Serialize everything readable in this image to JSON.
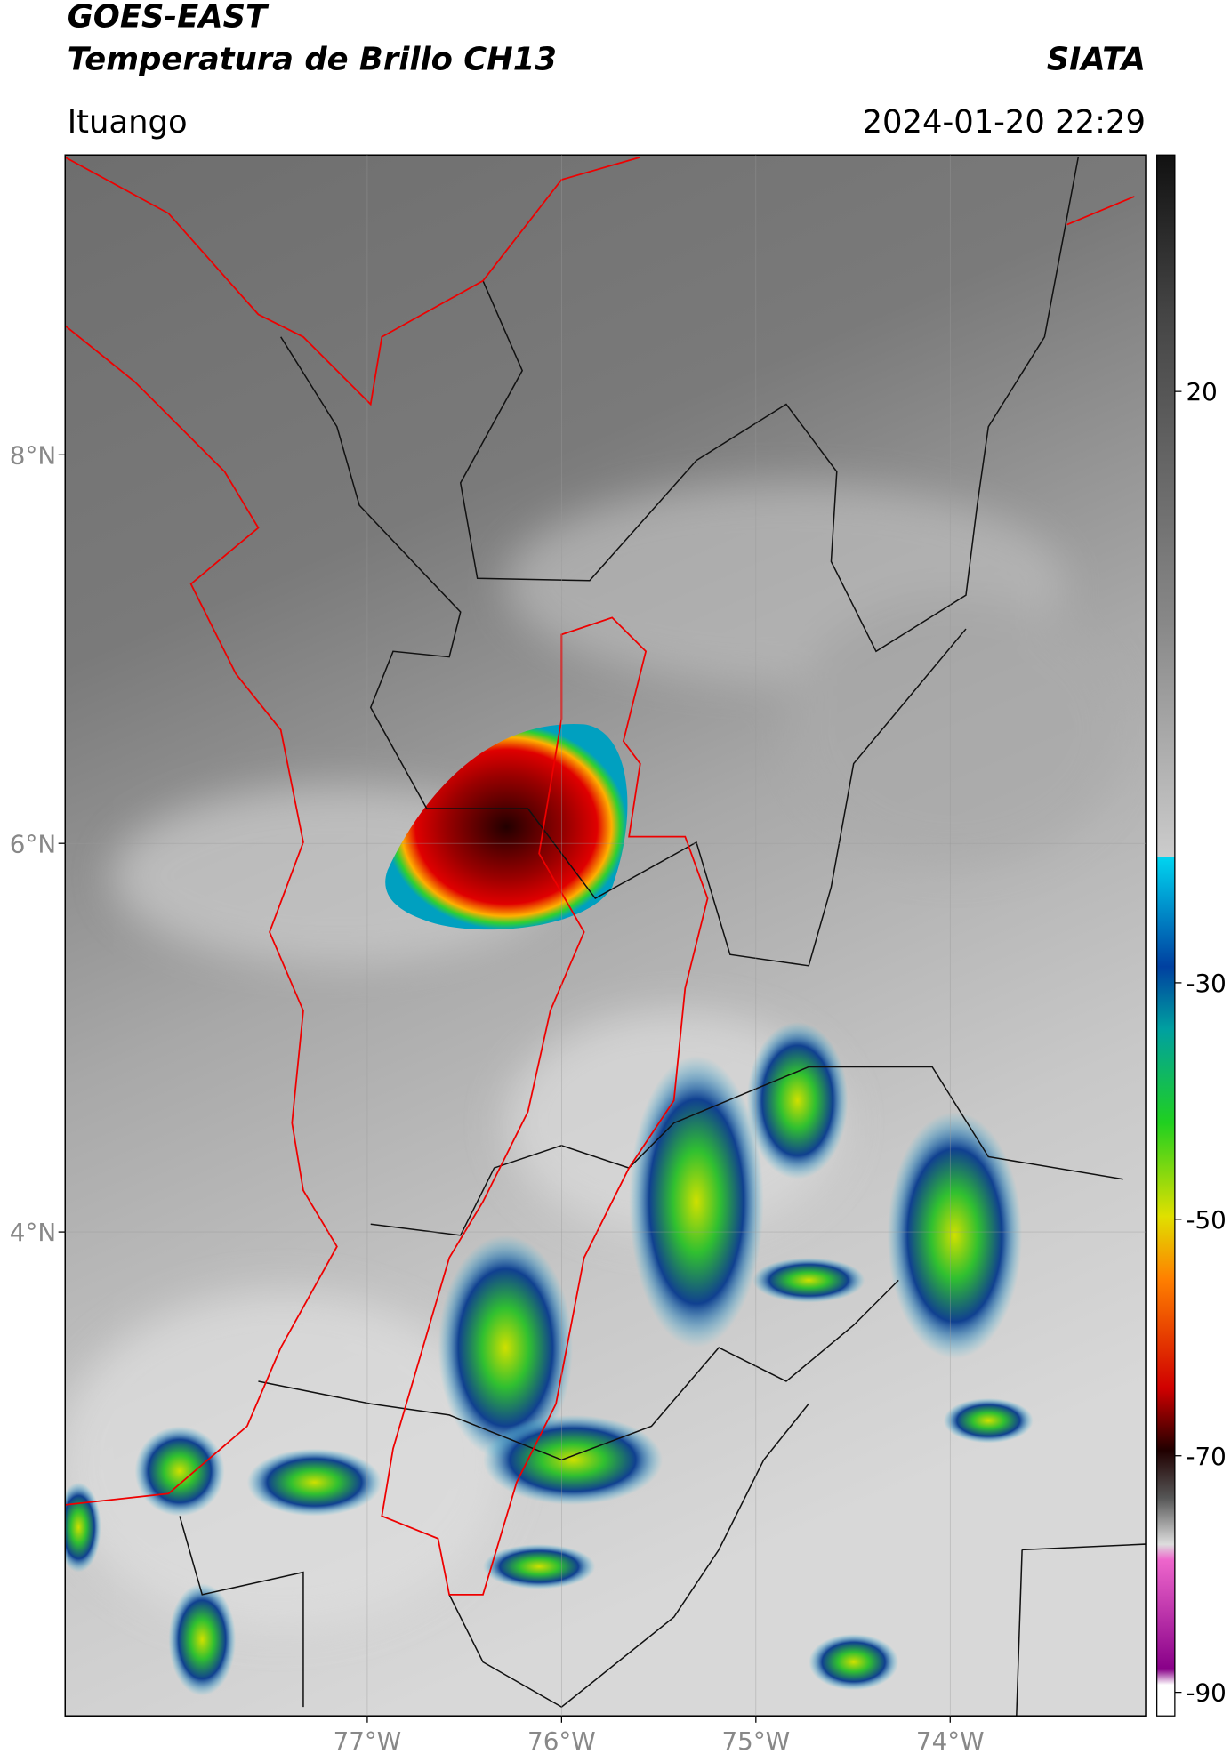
{
  "header": {
    "satellite": "GOES-EAST",
    "product": "Temperatura de Brillo CH13",
    "source": "SIATA",
    "location": "Ituango",
    "datetime": "2024-01-20 22:29"
  },
  "map": {
    "lon_range": [
      -78.555,
      -72.994
    ],
    "lat_range": [
      1.509,
      9.543
    ],
    "lon_ticks": [
      {
        "value": -77,
        "label": "77°W"
      },
      {
        "value": -76,
        "label": "76°W"
      },
      {
        "value": -75,
        "label": "75°W"
      },
      {
        "value": -74,
        "label": "74°W"
      }
    ],
    "lat_ticks": [
      {
        "value": 8,
        "label": "8°N"
      },
      {
        "value": 6,
        "label": "6°N"
      },
      {
        "value": 4,
        "label": "4°N"
      }
    ]
  },
  "colorbar": {
    "range": [
      40,
      -92
    ],
    "ticks": [
      20,
      -30,
      -50,
      -70,
      -90
    ]
  }
}
